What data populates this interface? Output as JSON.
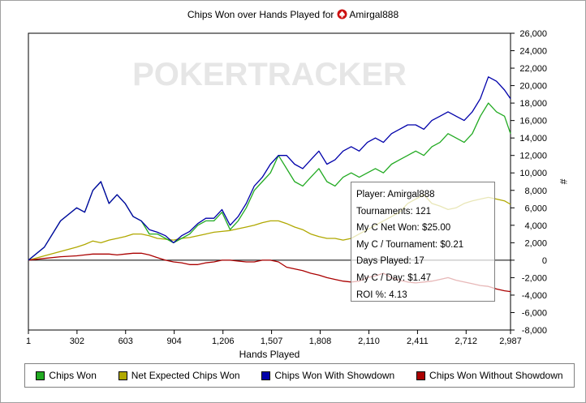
{
  "chart_data": {
    "type": "line",
    "title": "Chips Won over Hands Played for",
    "player_name": "Amirgal888",
    "title_icon": "pokerstars-spade-icon",
    "watermark": "POKERTRACKER",
    "xlabel": "Hands Played",
    "ylabel": "#",
    "xlim": [
      1,
      2987
    ],
    "ylim": [
      -8000,
      26000
    ],
    "x_ticks": [
      1,
      302,
      603,
      904,
      1206,
      1507,
      1808,
      2110,
      2411,
      2712,
      2987
    ],
    "y_ticks": [
      -8000,
      -6000,
      -4000,
      -2000,
      0,
      2000,
      4000,
      6000,
      8000,
      10000,
      12000,
      14000,
      16000,
      18000,
      20000,
      22000,
      24000,
      26000
    ],
    "legend_position": "bottom",
    "grid": false,
    "x": [
      1,
      100,
      200,
      300,
      350,
      400,
      450,
      500,
      550,
      600,
      650,
      700,
      750,
      800,
      850,
      900,
      950,
      1000,
      1050,
      1100,
      1150,
      1200,
      1250,
      1300,
      1350,
      1400,
      1450,
      1500,
      1550,
      1600,
      1650,
      1700,
      1750,
      1800,
      1850,
      1900,
      1950,
      2000,
      2050,
      2100,
      2150,
      2200,
      2250,
      2300,
      2350,
      2400,
      2450,
      2500,
      2550,
      2600,
      2650,
      2700,
      2750,
      2800,
      2850,
      2900,
      2950,
      2987
    ],
    "series": [
      {
        "name": "Chips Won",
        "color": "#22aa22",
        "values": [
          0,
          1500,
          4500,
          6000,
          5500,
          8000,
          9000,
          6500,
          7500,
          6500,
          5000,
          4500,
          3000,
          3000,
          2500,
          2000,
          2500,
          3000,
          4000,
          4500,
          4500,
          5500,
          3500,
          4500,
          6000,
          8000,
          9000,
          10000,
          12000,
          10500,
          9000,
          8500,
          9500,
          10500,
          9000,
          8500,
          9500,
          10000,
          9500,
          10000,
          10500,
          10000,
          11000,
          11500,
          12000,
          12500,
          12000,
          13000,
          13500,
          14500,
          14000,
          13500,
          14500,
          16500,
          18000,
          17000,
          16500,
          14500
        ]
      },
      {
        "name": "Net Expected Chips Won",
        "color": "#b0a800",
        "values": [
          0,
          500,
          1000,
          1500,
          1800,
          2200,
          2000,
          2300,
          2500,
          2700,
          3000,
          3000,
          2800,
          2500,
          2400,
          2300,
          2500,
          2600,
          2800,
          3000,
          3200,
          3300,
          3400,
          3600,
          3800,
          4000,
          4300,
          4500,
          4500,
          4200,
          3800,
          3500,
          3000,
          2700,
          2500,
          2500,
          2300,
          2500,
          3000,
          3500,
          4000,
          4500,
          5000,
          5500,
          6500,
          7000,
          7500,
          6500,
          6200,
          5800,
          6000,
          6500,
          6800,
          7000,
          7200,
          7000,
          6800,
          6400
        ]
      },
      {
        "name": "Chips Won With Showdown",
        "color": "#0000aa",
        "values": [
          0,
          1500,
          4500,
          6000,
          5500,
          8000,
          9000,
          6500,
          7500,
          6500,
          5000,
          4500,
          3500,
          3200,
          2800,
          2000,
          2800,
          3300,
          4200,
          4800,
          4800,
          5800,
          4000,
          5000,
          6500,
          8500,
          9500,
          11000,
          12000,
          12000,
          11000,
          10500,
          11500,
          12500,
          11000,
          11500,
          12500,
          13000,
          12500,
          13500,
          14000,
          13500,
          14500,
          15000,
          15500,
          15500,
          15000,
          16000,
          16500,
          17000,
          16500,
          16000,
          17000,
          18500,
          21000,
          20500,
          19500,
          18500
        ]
      },
      {
        "name": "Chips Won Without Showdown",
        "color": "#aa0000",
        "values": [
          0,
          200,
          400,
          500,
          600,
          700,
          700,
          700,
          600,
          700,
          800,
          800,
          600,
          300,
          0,
          -200,
          -300,
          -500,
          -500,
          -300,
          -200,
          0,
          0,
          -100,
          -200,
          -200,
          0,
          0,
          -200,
          -800,
          -1000,
          -1200,
          -1500,
          -1700,
          -2000,
          -2200,
          -2400,
          -2500,
          -2400,
          -2000,
          -1800,
          -1500,
          -2000,
          -2300,
          -2500,
          -2600,
          -2500,
          -2400,
          -2200,
          -2000,
          -2300,
          -2500,
          -2700,
          -2900,
          -3000,
          -3300,
          -3500,
          -3600
        ]
      }
    ]
  },
  "info_box": {
    "player": "Player: Amirgal888",
    "tournaments": "Tournaments: 121",
    "net_won": "My C Net Won: $25.00",
    "per_tournament": "My C / Tournament: $0.21",
    "days_played": "Days Played: 17",
    "per_day": "My C / Day: $1.47",
    "roi": "ROI %: 4.13"
  }
}
